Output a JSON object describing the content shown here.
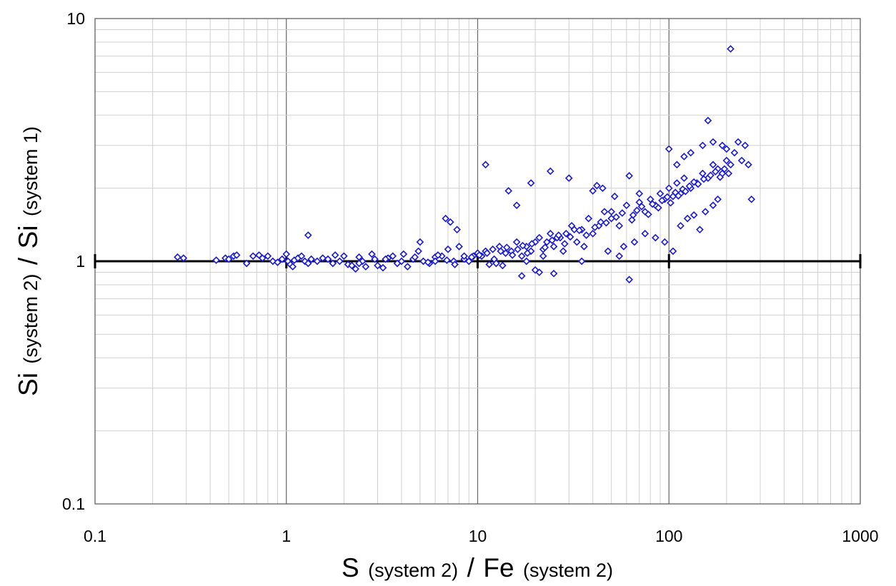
{
  "chart_data": {
    "type": "scatter",
    "title": "",
    "xlabel": {
      "main": "S",
      "sub1": "(system 2)",
      "sep": "/",
      "main2": "Fe",
      "sub2": "(system 2)"
    },
    "ylabel": {
      "main": "Si",
      "sub1": "(system 2)",
      "sep": "/",
      "main2": "Si",
      "sub2": "(system 1)"
    },
    "xscale": "log",
    "yscale": "log",
    "xlim": [
      0.1,
      1000
    ],
    "ylim": [
      0.1,
      10
    ],
    "xticks": [
      "0.1",
      "1",
      "10",
      "100",
      "1000"
    ],
    "yticks": [
      "0.1",
      "1",
      "10"
    ],
    "grid": true,
    "reference_line": {
      "y": 1
    },
    "marker": "diamond-open",
    "series_color": "#1a1ad6",
    "series": [
      {
        "x": [
          0.27,
          0.29,
          0.43,
          0.48,
          0.5,
          0.53,
          0.55,
          0.62,
          0.67,
          0.72,
          0.75,
          0.8,
          0.85,
          0.9,
          0.95,
          1.0,
          1.02,
          1.05,
          1.08,
          1.1,
          1.15,
          1.2,
          1.25,
          1.3,
          1.35,
          1.45,
          1.55,
          1.65,
          1.75,
          1.8,
          1.9,
          2.0,
          2.1,
          2.2,
          2.3,
          2.4,
          2.5,
          2.6,
          2.8,
          2.9,
          3.0,
          3.2,
          3.4,
          3.6,
          3.8,
          4.0,
          4.3,
          4.6,
          4.9,
          5.2,
          5.6,
          6.0,
          6.5,
          7.0,
          7.5,
          8.0,
          8.5,
          9.0,
          9.5,
          10.0,
          10.5,
          11.0,
          11.5,
          12.0,
          13.0,
          14.0,
          15.0,
          16.0,
          17.0,
          18.0,
          19.0,
          20.0,
          21.0,
          22.0,
          23.0,
          24.0,
          25.0,
          27.0,
          29.0,
          31.0,
          33.0,
          35.0,
          38.0,
          40.0,
          43.0,
          46.0,
          50.0,
          55.0,
          60.0,
          65.0,
          70.0,
          75.0,
          80.0,
          85.0,
          90.0,
          95.0,
          100.0,
          105.0,
          110.0,
          115.0,
          120.0,
          130.0,
          140.0,
          150.0,
          160.0,
          170.0,
          180.0,
          190.0,
          200.0,
          210.0,
          220.0,
          240.0,
          260.0,
          11.0,
          7.8,
          7.2,
          6.8,
          1.3,
          14.5,
          19.0,
          24.0,
          30.0,
          40.0,
          42.0,
          45.0,
          52.0,
          62.0,
          70.0,
          100.0,
          110.0,
          120.0,
          130.0,
          150.0,
          160.0,
          170.0,
          190.0,
          200.0,
          210.0,
          230.0,
          250.0,
          270.0,
          17.0,
          21.0,
          25.0,
          62.0,
          35.0,
          48.0,
          55.0,
          58.0,
          66.0,
          75.0,
          85.0,
          95.0,
          105.0,
          115.0,
          125.0,
          135.0,
          145.0,
          155.0,
          170.0,
          180.0,
          16.0,
          18.0,
          20.0,
          22.0,
          26.0,
          28.0,
          32.0,
          36.0,
          44.0,
          50.0,
          5.0,
          6.0,
          8.5,
          12.5,
          13.5,
          2.4,
          3.3,
          4.1,
          4.7,
          5.5,
          6.2,
          6.9,
          7.6,
          9.3,
          10.2,
          11.2,
          12.2,
          13.2,
          14.2,
          15.2,
          16.2,
          17.2,
          18.2,
          19.2,
          22.5,
          24.5,
          26.5,
          28.5,
          30.5,
          34.0,
          37.0,
          41.0,
          47.0,
          53.0,
          57.0,
          64.0,
          68.0,
          72.0,
          78.0,
          82.0,
          88.0,
          92.0,
          98.0,
          102.0,
          108.0,
          112.0,
          118.0,
          122.0,
          128.0,
          135.0,
          142.0,
          152.0,
          165.0,
          175.0,
          185.0,
          195.0,
          205.0
        ],
        "y": [
          1.04,
          1.03,
          1.01,
          1.03,
          1.02,
          1.05,
          1.06,
          0.98,
          1.05,
          1.06,
          1.03,
          1.05,
          1.0,
          0.99,
          1.02,
          1.07,
          1.0,
          0.97,
          0.95,
          1.01,
          1.03,
          1.05,
          1.0,
          0.98,
          1.02,
          1.0,
          1.03,
          1.02,
          0.98,
          1.06,
          1.0,
          1.05,
          0.97,
          0.96,
          0.93,
          1.04,
          1.0,
          0.95,
          1.07,
          1.02,
          0.96,
          0.94,
          1.03,
          1.05,
          0.98,
          1.0,
          0.95,
          1.02,
          1.1,
          1.0,
          0.98,
          1.04,
          1.05,
          1.12,
          1.0,
          1.15,
          1.02,
          1.0,
          1.05,
          1.08,
          1.05,
          1.1,
          0.97,
          1.12,
          1.15,
          1.08,
          1.1,
          1.2,
          1.05,
          1.15,
          1.1,
          1.2,
          1.25,
          1.12,
          1.2,
          1.3,
          1.15,
          1.25,
          1.3,
          1.4,
          1.2,
          1.35,
          1.5,
          1.3,
          1.4,
          1.6,
          1.5,
          1.4,
          1.7,
          1.55,
          1.75,
          1.6,
          1.8,
          1.7,
          1.9,
          1.8,
          2.0,
          1.85,
          2.1,
          1.9,
          2.2,
          2.0,
          2.1,
          2.3,
          2.2,
          2.5,
          2.4,
          2.3,
          2.6,
          2.5,
          2.8,
          2.6,
          2.5,
          2.5,
          1.35,
          1.45,
          1.5,
          1.28,
          1.95,
          2.1,
          2.35,
          2.2,
          1.95,
          2.05,
          2.0,
          1.85,
          2.25,
          1.9,
          2.9,
          2.5,
          2.7,
          2.8,
          3.0,
          3.8,
          3.1,
          3.0,
          2.9,
          7.5,
          3.1,
          3.0,
          1.8,
          0.87,
          0.9,
          0.89,
          0.84,
          1.0,
          1.1,
          1.05,
          1.15,
          1.2,
          1.3,
          1.25,
          1.2,
          1.1,
          1.4,
          1.5,
          1.55,
          1.35,
          1.6,
          1.7,
          1.8,
          1.7,
          1.0,
          0.92,
          1.05,
          1.25,
          1.1,
          1.35,
          1.15,
          1.45,
          1.6,
          1.2,
          1.0,
          1.05,
          0.98,
          0.96,
          0.98,
          1.02,
          1.07,
          1.04,
          0.99,
          1.06,
          1.01,
          0.97,
          1.04,
          1.06,
          1.08,
          1.02,
          1.1,
          1.14,
          1.06,
          1.12,
          1.16,
          1.08,
          1.18,
          1.14,
          1.22,
          1.28,
          1.18,
          1.26,
          1.34,
          1.28,
          1.38,
          1.44,
          1.52,
          1.58,
          1.48,
          1.62,
          1.68,
          1.56,
          1.72,
          1.66,
          1.78,
          1.84,
          1.74,
          1.92,
          1.86,
          1.98,
          1.94,
          2.04,
          2.12,
          2.08,
          2.18,
          2.26,
          2.34,
          2.22,
          2.4,
          2.3
        ]
      }
    ]
  }
}
